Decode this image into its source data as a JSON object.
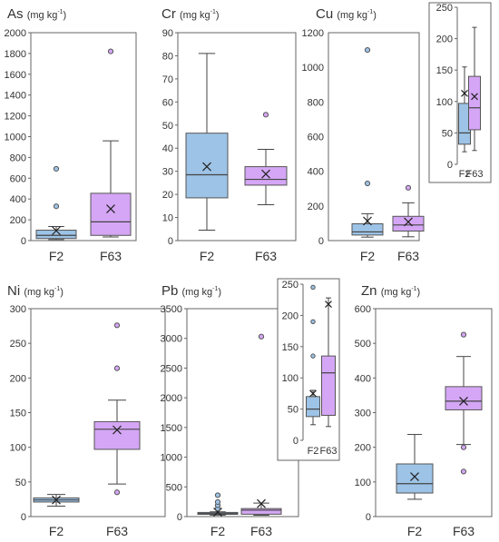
{
  "figure": {
    "colors": {
      "F2": "#9dc3e6",
      "F63": "#d5a6f5"
    }
  },
  "chart_data": [
    {
      "type": "box",
      "element": "As",
      "unit": "(mg kg",
      "unit_exp": "-1",
      "unit_close": ")",
      "categories": [
        "F2",
        "F63"
      ],
      "ylim": [
        0,
        2000
      ],
      "yticks": [
        0,
        200,
        400,
        600,
        800,
        1000,
        1200,
        1400,
        1600,
        1800,
        2000
      ],
      "boxes": [
        {
          "group": "F2",
          "min": 10,
          "q1": 20,
          "median": 50,
          "q3": 100,
          "max": 135,
          "mean": 95,
          "outliers": [
            330,
            690
          ]
        },
        {
          "group": "F63",
          "min": 35,
          "q1": 50,
          "median": 180,
          "q3": 455,
          "max": 960,
          "mean": 305,
          "outliers": [
            1820
          ]
        }
      ]
    },
    {
      "type": "box",
      "element": "Cr",
      "unit": "(mg kg",
      "unit_exp": "-1",
      "unit_close": ")",
      "categories": [
        "F2",
        "F63"
      ],
      "ylim": [
        0,
        90
      ],
      "yticks": [
        0,
        10,
        20,
        30,
        40,
        50,
        60,
        70,
        80,
        90
      ],
      "boxes": [
        {
          "group": "F2",
          "min": 4.5,
          "q1": 18.5,
          "median": 28.5,
          "q3": 46.5,
          "max": 81,
          "mean": 32,
          "outliers": []
        },
        {
          "group": "F63",
          "min": 15.5,
          "q1": 24,
          "median": 26.5,
          "q3": 32,
          "max": 39.5,
          "mean": 28.8,
          "outliers": [
            54.5
          ]
        }
      ]
    },
    {
      "type": "box",
      "element": "Cu",
      "unit": "(mg kg",
      "unit_exp": "-1",
      "unit_close": ")",
      "categories": [
        "F2",
        "F63"
      ],
      "ylim": [
        0,
        1200
      ],
      "yticks": [
        0,
        200,
        400,
        600,
        800,
        1000,
        1200
      ],
      "boxes": [
        {
          "group": "F2",
          "min": 20,
          "q1": 32,
          "median": 50,
          "q3": 97,
          "max": 155,
          "mean": 113,
          "outliers": [
            330,
            1100
          ]
        },
        {
          "group": "F63",
          "min": 22,
          "q1": 55,
          "median": 90,
          "q3": 140,
          "max": 218,
          "mean": 108,
          "outliers": [
            305
          ]
        }
      ],
      "inset": {
        "ylim": [
          0,
          250
        ],
        "yticks": [
          0,
          50,
          100,
          150,
          200,
          250
        ],
        "boxes": [
          {
            "group": "F2",
            "min": 20,
            "q1": 32,
            "median": 50,
            "q3": 97,
            "max": 155,
            "mean": 113,
            "outliers": []
          },
          {
            "group": "F63",
            "min": 22,
            "q1": 55,
            "median": 90,
            "q3": 140,
            "max": 218,
            "mean": 108,
            "outliers": []
          }
        ]
      }
    },
    {
      "type": "box",
      "element": "Ni",
      "unit": "(mg kg",
      "unit_exp": "-1",
      "unit_close": ")",
      "categories": [
        "F2",
        "F63"
      ],
      "ylim": [
        0,
        300
      ],
      "yticks": [
        0,
        50,
        100,
        150,
        200,
        250,
        300
      ],
      "boxes": [
        {
          "group": "F2",
          "min": 15,
          "q1": 21,
          "median": 24,
          "q3": 27,
          "max": 32,
          "mean": 24,
          "outliers": []
        },
        {
          "group": "F63",
          "min": 47,
          "q1": 97,
          "median": 126,
          "q3": 137,
          "max": 168,
          "mean": 125,
          "outliers": [
            35,
            214,
            276
          ]
        }
      ]
    },
    {
      "type": "box",
      "element": "Pb",
      "unit": "(mg kg",
      "unit_exp": "-1",
      "unit_close": ")",
      "categories": [
        "F2",
        "F63"
      ],
      "ylim": [
        0,
        3500
      ],
      "yticks": [
        0,
        500,
        1000,
        1500,
        2000,
        2500,
        3000,
        3500
      ],
      "boxes": [
        {
          "group": "F2",
          "min": 25,
          "q1": 38,
          "median": 50,
          "q3": 70,
          "max": 80,
          "mean": 75,
          "outliers": [
            135,
            190,
            245,
            360
          ]
        },
        {
          "group": "F63",
          "min": 22,
          "q1": 40,
          "median": 108,
          "q3": 135,
          "max": 228,
          "mean": 218,
          "outliers": [
            3030
          ]
        }
      ],
      "inset": {
        "ylim": [
          0,
          250
        ],
        "yticks": [
          0,
          50,
          100,
          150,
          200,
          250
        ],
        "boxes": [
          {
            "group": "F2",
            "min": 25,
            "q1": 38,
            "median": 50,
            "q3": 70,
            "max": 80,
            "mean": 75,
            "outliers": [
              135,
              190,
              245
            ]
          },
          {
            "group": "F63",
            "min": 22,
            "q1": 40,
            "median": 108,
            "q3": 135,
            "max": 228,
            "mean": 218,
            "outliers": []
          }
        ]
      }
    },
    {
      "type": "box",
      "element": "Zn",
      "unit": "(mg kg",
      "unit_exp": "-1",
      "unit_close": ")",
      "categories": [
        "F2",
        "F63"
      ],
      "ylim": [
        0,
        600
      ],
      "yticks": [
        0,
        100,
        200,
        300,
        400,
        500,
        600
      ],
      "boxes": [
        {
          "group": "F2",
          "min": 50,
          "q1": 68,
          "median": 95,
          "q3": 152,
          "max": 237,
          "mean": 115,
          "outliers": []
        },
        {
          "group": "F63",
          "min": 208,
          "q1": 308,
          "median": 333,
          "q3": 375,
          "max": 462,
          "mean": 333,
          "outliers": [
            130,
            200,
            525
          ]
        }
      ]
    }
  ]
}
